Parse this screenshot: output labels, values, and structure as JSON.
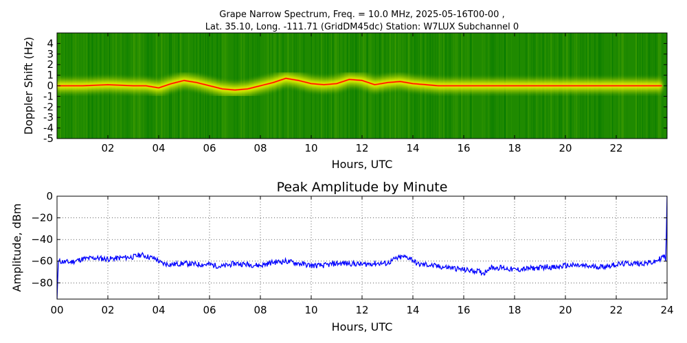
{
  "chart_data": [
    {
      "type": "heatmap",
      "title_line1": "Grape Narrow Spectrum, Freq. = 10.0 MHz, 2025-05-16T00-00 ,",
      "title_line2": "Lat.  35.10, Long. -111.71 (GridDM45dc) Station: W7LUX Subchannel 0",
      "xlabel": "Hours, UTC",
      "ylabel": "Doppler Shift (Hz)",
      "xlim": [
        0,
        24
      ],
      "ylim": [
        -5,
        5
      ],
      "xticks": [
        "02",
        "04",
        "06",
        "08",
        "10",
        "12",
        "14",
        "16",
        "18",
        "20",
        "22"
      ],
      "xtick_values": [
        2,
        4,
        6,
        8,
        10,
        12,
        14,
        16,
        18,
        20,
        22
      ],
      "yticks": [
        "-5",
        "-4",
        "-3",
        "-2",
        "-1",
        "0",
        "1",
        "2",
        "3",
        "4"
      ],
      "ytick_values": [
        -5,
        -4,
        -3,
        -2,
        -1,
        0,
        1,
        2,
        3,
        4
      ],
      "colormap": [
        "#0a7d00",
        "#3a9a00",
        "#b4d400",
        "#ffff00",
        "#ff9a00",
        "#ff0000"
      ],
      "background_color": "#1f8a00",
      "carrier_trace": {
        "x": [
          0,
          1,
          2,
          3,
          3.5,
          4,
          4.5,
          5,
          5.5,
          6,
          6.5,
          7,
          7.5,
          8,
          8.5,
          9,
          9.5,
          10,
          10.5,
          11,
          11.5,
          12,
          12.5,
          13,
          13.5,
          14,
          15,
          16,
          17,
          18,
          19,
          20,
          21,
          22,
          23,
          23.8
        ],
        "y": [
          0,
          0,
          0.1,
          0,
          0,
          -0.2,
          0.2,
          0.5,
          0.3,
          0,
          -0.3,
          -0.4,
          -0.3,
          0,
          0.3,
          0.7,
          0.5,
          0.2,
          0.1,
          0.2,
          0.6,
          0.5,
          0.1,
          0.3,
          0.4,
          0.2,
          0,
          0,
          0,
          0,
          0,
          0,
          0,
          0,
          0,
          0
        ]
      }
    },
    {
      "type": "line",
      "title": "Peak Amplitude by Minute",
      "xlabel": "Hours, UTC",
      "ylabel": "Amplitude, dBm",
      "xlim": [
        0,
        24
      ],
      "ylim": [
        -95,
        0
      ],
      "xticks": [
        "00",
        "02",
        "04",
        "06",
        "08",
        "10",
        "12",
        "14",
        "16",
        "18",
        "20",
        "22",
        "24"
      ],
      "xtick_values": [
        0,
        2,
        4,
        6,
        8,
        10,
        12,
        14,
        16,
        18,
        20,
        22,
        24
      ],
      "yticks": [
        "0",
        "−20",
        "−40",
        "−60",
        "−80"
      ],
      "ytick_values": [
        0,
        -20,
        -40,
        -60,
        -80
      ],
      "grid": true,
      "line_color": "#0000ff",
      "series": [
        {
          "x": [
            0,
            0.05,
            0.5,
            1,
            1.5,
            2,
            2.5,
            3,
            3.3,
            3.6,
            3.9,
            4.1,
            4.5,
            5,
            5.5,
            6,
            6.5,
            7,
            7.5,
            8,
            8.5,
            9,
            9.5,
            10,
            10.5,
            11,
            11.5,
            12,
            12.5,
            13,
            13.3,
            13.6,
            13.9,
            14.2,
            14.5,
            15,
            15.5,
            16,
            16.5,
            16.8,
            17,
            17.5,
            18,
            18.5,
            19,
            19.3,
            19.6,
            20,
            20.5,
            21,
            21.5,
            22,
            22.5,
            23,
            23.5,
            23.9,
            23.95,
            24
          ],
          "y": [
            -95,
            -60,
            -61,
            -58,
            -57,
            -58,
            -57,
            -56,
            -54,
            -56,
            -58,
            -62,
            -63,
            -62,
            -63,
            -63,
            -65,
            -62,
            -63,
            -64,
            -61,
            -60,
            -62,
            -64,
            -64,
            -62,
            -62,
            -63,
            -62,
            -62,
            -58,
            -56,
            -57,
            -63,
            -63,
            -65,
            -66,
            -68,
            -69,
            -71,
            -66,
            -66,
            -68,
            -67,
            -66,
            -65,
            -66,
            -64,
            -64,
            -65,
            -65,
            -63,
            -62,
            -62,
            -61,
            -55,
            -60,
            0
          ]
        }
      ]
    }
  ]
}
